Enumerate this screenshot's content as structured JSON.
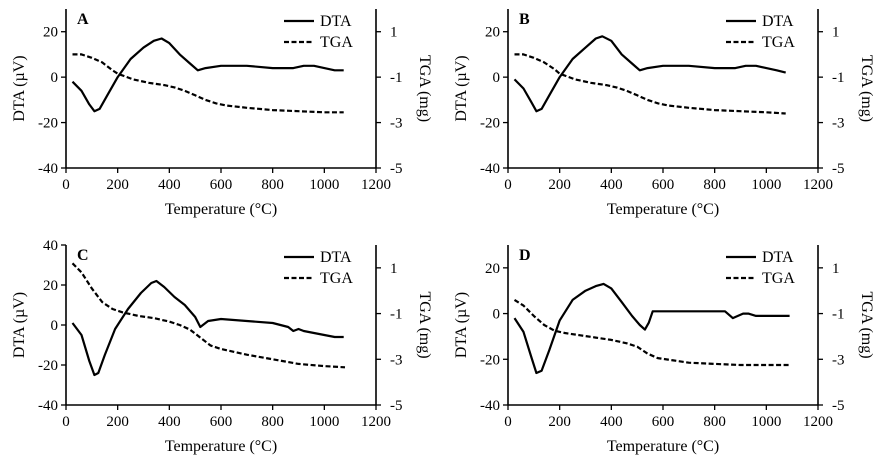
{
  "chart_data": [
    {
      "type": "line",
      "panel_label": "A",
      "xlabel": "Temperature (°C)",
      "ylabel": "DTA (µV)",
      "y2label": "TGA (mg)",
      "xlim": [
        0,
        1200
      ],
      "ylim": [
        -40,
        30
      ],
      "y2lim": [
        -5,
        2
      ],
      "xticks": [
        "0",
        "200",
        "400",
        "600",
        "800",
        "1000",
        "1200"
      ],
      "yticks": [
        "-40",
        "-20",
        "0",
        "20"
      ],
      "y2ticks": [
        "-5",
        "-3",
        "-1",
        "1"
      ],
      "legend": "top-right",
      "series": [
        {
          "name": "DTA",
          "axis": "left",
          "style": "solid",
          "x": [
            25,
            60,
            90,
            110,
            130,
            160,
            200,
            250,
            300,
            340,
            370,
            400,
            440,
            480,
            510,
            540,
            600,
            700,
            800,
            880,
            920,
            960,
            1000,
            1040,
            1075
          ],
          "y": [
            -2,
            -6,
            -12,
            -15,
            -14,
            -8,
            0,
            8,
            13,
            16,
            17,
            15,
            10,
            6,
            3,
            4,
            5,
            5,
            4,
            4,
            5,
            5,
            4,
            3,
            3
          ]
        },
        {
          "name": "TGA",
          "axis": "right",
          "style": "dashed",
          "x": [
            25,
            60,
            100,
            140,
            180,
            200,
            260,
            320,
            380,
            420,
            460,
            500,
            540,
            580,
            620,
            700,
            800,
            900,
            1000,
            1075
          ],
          "y": [
            0,
            0,
            -0.15,
            -0.35,
            -0.7,
            -0.85,
            -1.1,
            -1.25,
            -1.35,
            -1.45,
            -1.6,
            -1.8,
            -2.0,
            -2.15,
            -2.25,
            -2.35,
            -2.45,
            -2.5,
            -2.55,
            -2.55
          ]
        }
      ]
    },
    {
      "type": "line",
      "panel_label": "B",
      "xlabel": "Temperature (°C)",
      "ylabel": "DTA (µV)",
      "y2label": "TGA (mg)",
      "xlim": [
        0,
        1200
      ],
      "ylim": [
        -40,
        30
      ],
      "y2lim": [
        -5,
        2
      ],
      "xticks": [
        "0",
        "200",
        "400",
        "600",
        "800",
        "1000",
        "1200"
      ],
      "yticks": [
        "-40",
        "-20",
        "0",
        "20"
      ],
      "y2ticks": [
        "-5",
        "-3",
        "-1",
        "1"
      ],
      "legend": "top-right",
      "series": [
        {
          "name": "DTA",
          "axis": "left",
          "style": "solid",
          "x": [
            25,
            60,
            90,
            110,
            130,
            160,
            200,
            250,
            300,
            340,
            365,
            400,
            440,
            480,
            510,
            540,
            600,
            700,
            800,
            880,
            920,
            960,
            1000,
            1040,
            1075
          ],
          "y": [
            -1,
            -5,
            -11,
            -15,
            -14,
            -8,
            0,
            8,
            13,
            17,
            18,
            16,
            10,
            6,
            3,
            4,
            5,
            5,
            4,
            4,
            5,
            5,
            4,
            3,
            2
          ]
        },
        {
          "name": "TGA",
          "axis": "right",
          "style": "dashed",
          "x": [
            25,
            60,
            100,
            140,
            180,
            200,
            260,
            320,
            380,
            420,
            460,
            500,
            540,
            580,
            620,
            700,
            800,
            900,
            1000,
            1075
          ],
          "y": [
            0,
            0,
            -0.15,
            -0.35,
            -0.65,
            -0.85,
            -1.1,
            -1.25,
            -1.35,
            -1.45,
            -1.6,
            -1.8,
            -2.0,
            -2.15,
            -2.25,
            -2.35,
            -2.45,
            -2.5,
            -2.55,
            -2.6
          ]
        }
      ]
    },
    {
      "type": "line",
      "panel_label": "C",
      "xlabel": "Temperature (°C)",
      "ylabel": "DTA (µV)",
      "y2label": "TGA (mg)",
      "xlim": [
        0,
        1200
      ],
      "ylim": [
        -40,
        40
      ],
      "y2lim": [
        -5,
        2
      ],
      "xticks": [
        "0",
        "200",
        "400",
        "600",
        "800",
        "1000",
        "1200"
      ],
      "yticks": [
        "-40",
        "-20",
        "0",
        "20",
        "40"
      ],
      "y2ticks": [
        "-5",
        "-3",
        "-1",
        "1"
      ],
      "legend": "top-right",
      "series": [
        {
          "name": "DTA",
          "axis": "left",
          "style": "solid",
          "x": [
            25,
            60,
            90,
            110,
            125,
            150,
            190,
            240,
            290,
            330,
            350,
            380,
            420,
            460,
            500,
            520,
            550,
            600,
            700,
            800,
            860,
            880,
            900,
            920,
            960,
            1000,
            1040,
            1060,
            1075
          ],
          "y": [
            1,
            -5,
            -18,
            -25,
            -24,
            -15,
            -2,
            8,
            16,
            21,
            22,
            19,
            14,
            10,
            4,
            -1,
            2,
            3,
            2,
            1,
            -1,
            -3,
            -2,
            -3,
            -4,
            -5,
            -6,
            -6,
            -6
          ]
        },
        {
          "name": "TGA",
          "axis": "right",
          "style": "dashed",
          "x": [
            25,
            60,
            100,
            140,
            180,
            220,
            280,
            340,
            400,
            440,
            480,
            520,
            560,
            600,
            700,
            800,
            900,
            1000,
            1080
          ],
          "y": [
            1.2,
            0.8,
            0.1,
            -0.5,
            -0.8,
            -0.95,
            -1.1,
            -1.2,
            -1.35,
            -1.5,
            -1.7,
            -2.05,
            -2.4,
            -2.55,
            -2.8,
            -3.0,
            -3.2,
            -3.3,
            -3.35
          ]
        }
      ]
    },
    {
      "type": "line",
      "panel_label": "D",
      "xlabel": "Temperature (°C)",
      "ylabel": "DTA (µV)",
      "y2label": "TGA (mg)",
      "xlim": [
        0,
        1200
      ],
      "ylim": [
        -40,
        30
      ],
      "y2lim": [
        -5,
        2
      ],
      "xticks": [
        "0",
        "200",
        "400",
        "600",
        "800",
        "1000",
        "1200"
      ],
      "yticks": [
        "-40",
        "-20",
        "0",
        "20"
      ],
      "y2ticks": [
        "-5",
        "-3",
        "-1",
        "1"
      ],
      "legend": "top-right",
      "series": [
        {
          "name": "DTA",
          "axis": "left",
          "style": "solid",
          "x": [
            25,
            60,
            90,
            110,
            130,
            160,
            200,
            250,
            300,
            340,
            370,
            400,
            440,
            480,
            510,
            530,
            545,
            560,
            580,
            700,
            840,
            870,
            890,
            910,
            930,
            960,
            1000,
            1050,
            1090
          ],
          "y": [
            -2,
            -8,
            -19,
            -26,
            -25,
            -16,
            -3,
            6,
            10,
            12,
            13,
            11,
            5,
            -1,
            -5,
            -7,
            -4,
            1,
            1,
            1,
            1,
            -2,
            -1,
            0,
            0,
            -1,
            -1,
            -1,
            -1
          ]
        },
        {
          "name": "TGA",
          "axis": "right",
          "style": "dashed",
          "x": [
            25,
            60,
            100,
            140,
            180,
            220,
            280,
            340,
            400,
            460,
            500,
            540,
            580,
            640,
            700,
            800,
            900,
            1000,
            1090
          ],
          "y": [
            -0.4,
            -0.65,
            -1.1,
            -1.5,
            -1.75,
            -1.85,
            -1.95,
            -2.05,
            -2.15,
            -2.3,
            -2.45,
            -2.75,
            -2.95,
            -3.05,
            -3.15,
            -3.2,
            -3.25,
            -3.25,
            -3.25
          ]
        }
      ]
    }
  ]
}
